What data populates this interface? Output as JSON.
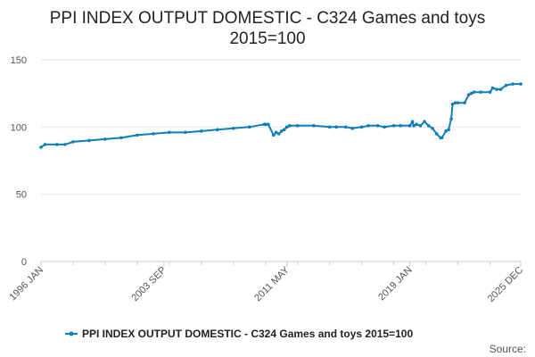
{
  "colors": {
    "series": "#0e7fbb",
    "gridline": "#e6e6e6",
    "axis": "#cccccc",
    "text": "#222222",
    "tick_text": "#555555"
  },
  "chart_data": {
    "type": "line",
    "title_line1": "PPI INDEX OUTPUT DOMESTIC - C324 Games and toys",
    "title_line2": "2015=100",
    "xlabel": "",
    "ylabel": "",
    "ylim": [
      0,
      150
    ],
    "yticks": [
      "0",
      "50",
      "100",
      "150"
    ],
    "xlim": [
      "1996 JAN",
      "2025 DEC"
    ],
    "x_tick_labels": [
      "1996 JAN",
      "2003 SEP",
      "2011 MAY",
      "2019 JAN",
      "2025 DEC"
    ],
    "grid": true,
    "legend_position": "bottom",
    "source_label": "Source:",
    "series": [
      {
        "name": "PPI INDEX OUTPUT DOMESTIC - C324 Games and toys 2015=100",
        "x": [
          "1996 JAN",
          "1996 APR",
          "1997 JAN",
          "1997 JUL",
          "1998 JAN",
          "1999 JAN",
          "2000 JAN",
          "2001 JAN",
          "2002 JAN",
          "2003 JAN",
          "2004 JAN",
          "2005 JAN",
          "2006 JAN",
          "2007 JAN",
          "2008 JAN",
          "2009 JAN",
          "2009 DEC",
          "2010 JAN",
          "2010 MAR",
          "2010 JUL",
          "2010 SEP",
          "2010 NOV",
          "2011 JAN",
          "2011 MAR",
          "2011 MAY",
          "2011 JUL",
          "2012 JAN",
          "2013 JAN",
          "2014 JAN",
          "2014 JUN",
          "2015 JAN",
          "2015 JUN",
          "2016 JAN",
          "2016 JUN",
          "2017 JAN",
          "2017 JUN",
          "2018 JAN",
          "2018 JUN",
          "2019 JAN",
          "2019 MAR",
          "2019 APR",
          "2019 JUN",
          "2019 SEP",
          "2019 DEC",
          "2020 MAR",
          "2020 JUN",
          "2020 SEP",
          "2020 DEC",
          "2021 JAN",
          "2021 APR",
          "2021 JUN",
          "2021 AUG",
          "2021 SEP",
          "2021 NOV",
          "2022 JAN",
          "2022 JUN",
          "2022 SEP",
          "2022 NOV",
          "2023 JAN",
          "2023 JUN",
          "2024 JAN",
          "2024 MAR",
          "2024 JUN",
          "2024 SEP",
          "2025 JAN",
          "2025 JUN",
          "2025 DEC"
        ],
        "values": [
          85,
          87,
          87,
          87,
          89,
          90,
          91,
          92,
          94,
          95,
          96,
          96,
          97,
          98,
          99,
          100,
          102,
          102,
          102,
          94,
          96,
          95,
          97,
          98,
          100,
          101,
          101,
          101,
          100,
          100,
          100,
          99,
          100,
          101,
          101,
          100,
          101,
          101,
          101,
          104,
          101,
          102,
          101,
          104,
          101,
          99,
          95,
          92,
          92,
          97,
          98,
          106,
          117,
          118,
          118,
          118,
          124,
          125,
          126,
          126,
          126,
          129,
          128,
          128,
          131,
          132,
          132
        ]
      }
    ]
  }
}
